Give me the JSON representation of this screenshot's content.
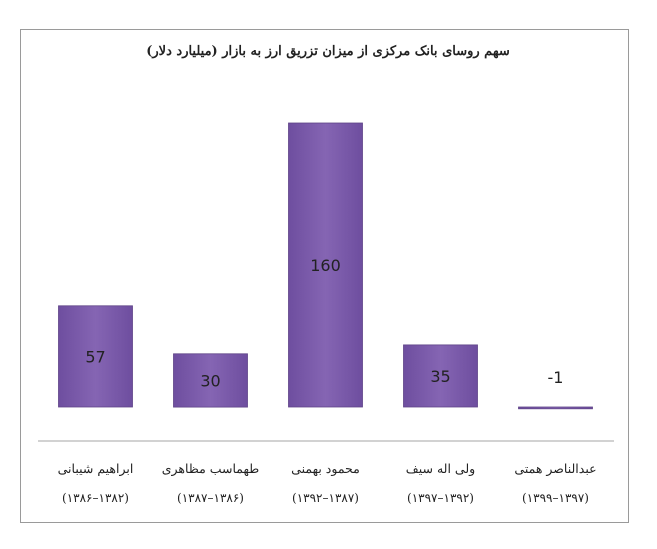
{
  "chart_data": {
    "type": "bar",
    "title": "سهم روسای بانک مرکزی از میزان تزریق ارز به بازار (میلیارد دلار)",
    "categories": [
      {
        "name": "ابراهیم شیبانی",
        "range": "(۱۳۸۲–۱۳۸۶)"
      },
      {
        "name": "طهماسب مظاهری",
        "range": "(۱۳۸۶–۱۳۸۷)"
      },
      {
        "name": "محمود بهمنی",
        "range": "(۱۳۸۷–۱۳۹۲)"
      },
      {
        "name": "ولی اله سیف",
        "range": "(۱۳۹۲–۱۳۹۷)"
      },
      {
        "name": "عبدالناصر همتی",
        "range": "(۱۳۹۷–۱۳۹۹)"
      }
    ],
    "values": [
      57,
      30,
      160,
      35,
      -1
    ],
    "data_labels": [
      "57",
      "30",
      "160",
      "35",
      "-1"
    ],
    "bar_color": "#7b5aaa",
    "bar_edge_color": "#5f4487",
    "grid": false,
    "legend": "none"
  }
}
